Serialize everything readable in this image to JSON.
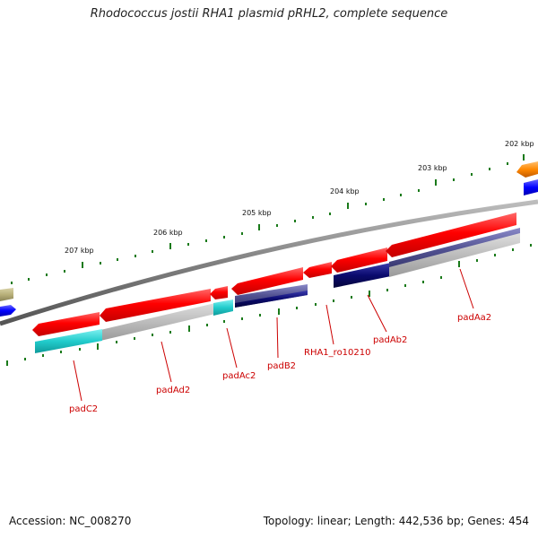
{
  "title": "Rhodococcus jostii RHA1 plasmid pRHL2, complete sequence",
  "footer": {
    "accession": "Accession: NC_008270",
    "summary": "Topology: linear; Length: 442,536 bp; Genes: 454"
  },
  "ruler": {
    "ticks": [
      {
        "label": "202 kbp"
      },
      {
        "label": "203 kbp"
      },
      {
        "label": "204 kbp"
      },
      {
        "label": "205 kbp"
      },
      {
        "label": "206 kbp"
      },
      {
        "label": "207 kbp"
      }
    ]
  },
  "genes": [
    {
      "name": "padC2"
    },
    {
      "name": "padAd2"
    },
    {
      "name": "padAc2"
    },
    {
      "name": "padB2"
    },
    {
      "name": "RHA1_ro10210"
    },
    {
      "name": "padAb2"
    },
    {
      "name": "padAa2"
    }
  ],
  "colors": {
    "cds": "#ff0000",
    "backbone": "#808080",
    "tick": "#1a7a1a",
    "label": "#cc0000",
    "cyan": "#22cccc",
    "navy": "#0a0a6e",
    "gray_feature": "#bbbbbb",
    "blue": "#0000ff",
    "orange": "#ff8800",
    "olive": "#b8b07a"
  }
}
